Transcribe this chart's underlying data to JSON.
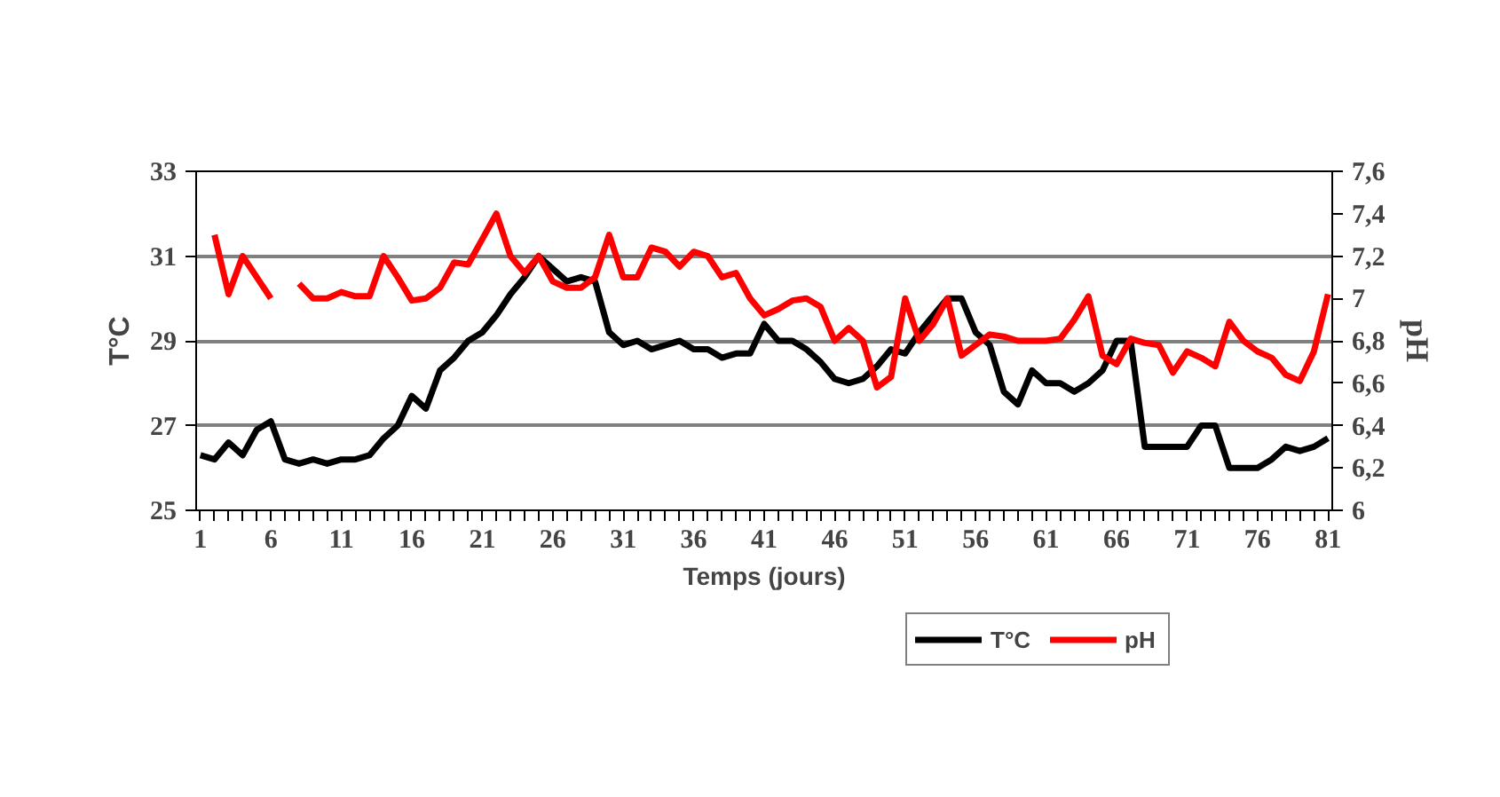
{
  "chart_data": {
    "type": "line",
    "xlabel": "Temps (jours)",
    "ylabel": "T°C",
    "y2label": "pH",
    "x": [
      1,
      2,
      3,
      4,
      5,
      6,
      7,
      8,
      9,
      10,
      11,
      12,
      13,
      14,
      15,
      16,
      17,
      18,
      19,
      20,
      21,
      22,
      23,
      24,
      25,
      26,
      27,
      28,
      29,
      30,
      31,
      32,
      33,
      34,
      35,
      36,
      37,
      38,
      39,
      40,
      41,
      42,
      43,
      44,
      45,
      46,
      47,
      48,
      49,
      50,
      51,
      52,
      53,
      54,
      55,
      56,
      57,
      58,
      59,
      60,
      61,
      62,
      63,
      64,
      65,
      66,
      67,
      68,
      69,
      70,
      71,
      72,
      73,
      74,
      75,
      76,
      77,
      78,
      79,
      80,
      81
    ],
    "series": [
      {
        "name": "T°C",
        "color": "#000000",
        "values": [
          26.3,
          26.2,
          26.6,
          26.3,
          26.9,
          27.1,
          26.2,
          26.1,
          26.2,
          26.1,
          26.2,
          26.2,
          26.3,
          26.7,
          27.0,
          27.7,
          27.4,
          28.3,
          28.6,
          29.0,
          29.2,
          29.6,
          30.1,
          30.5,
          31.0,
          30.7,
          30.4,
          30.5,
          30.4,
          29.2,
          28.9,
          29.0,
          28.8,
          28.9,
          29.0,
          28.8,
          28.8,
          28.6,
          28.7,
          28.7,
          29.4,
          29.0,
          29.0,
          28.8,
          28.5,
          28.1,
          28.0,
          28.1,
          28.4,
          28.8,
          28.7,
          29.2,
          29.6,
          30.0,
          30.0,
          29.2,
          28.9,
          27.8,
          27.5,
          28.3,
          28.0,
          28.0,
          27.8,
          28.0,
          28.3,
          29.0,
          29.0,
          26.5,
          26.5,
          26.5,
          26.5,
          27.0,
          27.0,
          26.0,
          26.0,
          26.0,
          26.2,
          26.5,
          26.4,
          26.5,
          26.7
        ]
      },
      {
        "name": "pH",
        "color": "#ff0000",
        "axis": "y2",
        "values": [
          null,
          7.3,
          7.02,
          7.2,
          7.1,
          7.0,
          null,
          7.07,
          7.0,
          7.0,
          7.03,
          7.01,
          7.01,
          7.2,
          7.1,
          6.99,
          7.0,
          7.05,
          7.17,
          7.16,
          7.28,
          7.4,
          7.2,
          7.12,
          7.2,
          7.08,
          7.05,
          7.05,
          7.1,
          7.3,
          7.1,
          7.1,
          7.24,
          7.22,
          7.15,
          7.22,
          7.2,
          7.1,
          7.12,
          7.0,
          6.92,
          6.95,
          6.99,
          7.0,
          6.96,
          6.8,
          6.86,
          6.8,
          6.58,
          6.63,
          7.0,
          6.8,
          6.88,
          7.0,
          6.73,
          6.78,
          6.83,
          6.82,
          6.8,
          6.8,
          6.8,
          6.81,
          6.9,
          7.01,
          6.73,
          6.69,
          6.81,
          6.79,
          6.78,
          6.65,
          6.75,
          6.72,
          6.68,
          6.89,
          6.8,
          6.75,
          6.72,
          6.64,
          6.61,
          6.75,
          7.02
        ]
      }
    ],
    "xlim": [
      0.7,
      81.3
    ],
    "xticks": [
      1,
      {
        "value": 2,
        "label": null
      },
      {
        "value": 3,
        "label": null
      },
      {
        "value": 4,
        "label": null
      },
      {
        "value": 5,
        "label": null
      },
      6,
      {
        "value": 7,
        "label": null
      },
      {
        "value": 8,
        "label": null
      },
      {
        "value": 9,
        "label": null
      },
      {
        "value": 10,
        "label": null
      },
      11,
      {
        "value": 12,
        "label": null
      },
      {
        "value": 13,
        "label": null
      },
      {
        "value": 14,
        "label": null
      },
      {
        "value": 15,
        "label": null
      },
      16,
      {
        "value": 17,
        "label": null
      },
      {
        "value": 18,
        "label": null
      },
      {
        "value": 19,
        "label": null
      },
      {
        "value": 20,
        "label": null
      },
      21,
      {
        "value": 22,
        "label": null
      },
      {
        "value": 23,
        "label": null
      },
      {
        "value": 24,
        "label": null
      },
      {
        "value": 25,
        "label": null
      },
      26,
      {
        "value": 27,
        "label": null
      },
      {
        "value": 28,
        "label": null
      },
      {
        "value": 29,
        "label": null
      },
      {
        "value": 30,
        "label": null
      },
      31,
      {
        "value": 32,
        "label": null
      },
      {
        "value": 33,
        "label": null
      },
      {
        "value": 34,
        "label": null
      },
      {
        "value": 35,
        "label": null
      },
      36,
      {
        "value": 37,
        "label": null
      },
      {
        "value": 38,
        "label": null
      },
      {
        "value": 39,
        "label": null
      },
      {
        "value": 40,
        "label": null
      },
      41,
      {
        "value": 42,
        "label": null
      },
      {
        "value": 43,
        "label": null
      },
      {
        "value": 44,
        "label": null
      },
      {
        "value": 45,
        "label": null
      },
      46,
      {
        "value": 47,
        "label": null
      },
      {
        "value": 48,
        "label": null
      },
      {
        "value": 49,
        "label": null
      },
      {
        "value": 50,
        "label": null
      },
      51,
      {
        "value": 52,
        "label": null
      },
      {
        "value": 53,
        "label": null
      },
      {
        "value": 54,
        "label": null
      },
      {
        "value": 55,
        "label": null
      },
      56,
      {
        "value": 57,
        "label": null
      },
      {
        "value": 58,
        "label": null
      },
      {
        "value": 59,
        "label": null
      },
      {
        "value": 60,
        "label": null
      },
      61,
      {
        "value": 62,
        "label": null
      },
      {
        "value": 63,
        "label": null
      },
      {
        "value": 64,
        "label": null
      },
      {
        "value": 65,
        "label": null
      },
      66,
      {
        "value": 67,
        "label": null
      },
      {
        "value": 68,
        "label": null
      },
      {
        "value": 69,
        "label": null
      },
      {
        "value": 70,
        "label": null
      },
      71,
      {
        "value": 72,
        "label": null
      },
      {
        "value": 73,
        "label": null
      },
      {
        "value": 74,
        "label": null
      },
      {
        "value": 75,
        "label": null
      },
      76,
      {
        "value": 77,
        "label": null
      },
      {
        "value": 78,
        "label": null
      },
      {
        "value": 79,
        "label": null
      },
      {
        "value": 80,
        "label": null
      },
      81
    ],
    "ylim": [
      25,
      33
    ],
    "yticks": [
      25,
      27,
      29,
      31,
      33
    ],
    "y2lim": [
      6,
      7.6
    ],
    "y2ticks": [
      6,
      {
        "value": 6.2,
        "label": "6,2"
      },
      {
        "value": 6.4,
        "label": "6,4"
      },
      {
        "value": 6.6,
        "label": "6,6"
      },
      {
        "value": 6.8,
        "label": "6,8"
      },
      7,
      {
        "value": 7.2,
        "label": "7,2"
      },
      {
        "value": 7.4,
        "label": "7,4"
      },
      {
        "value": 7.6,
        "label": "7,6"
      }
    ],
    "grid": "y",
    "legend": "bottom",
    "marker": "none",
    "line_style": "solid"
  }
}
